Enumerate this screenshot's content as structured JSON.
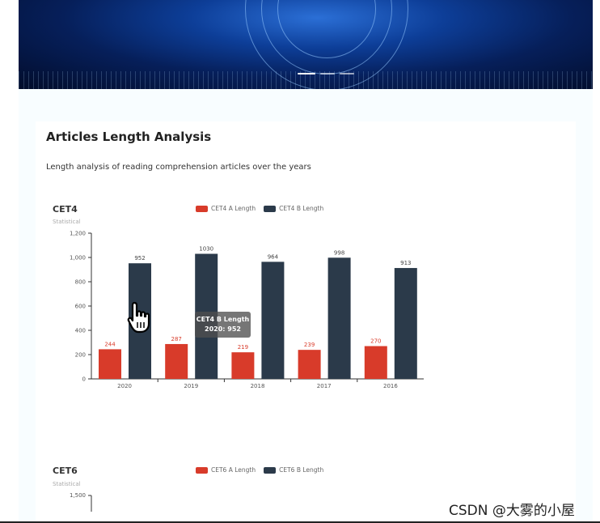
{
  "section": {
    "title": "Articles Length Analysis",
    "description": "Length analysis of reading comprehension articles over the years"
  },
  "colors": {
    "series_a": "#d83b2a",
    "series_b": "#2b3a4a"
  },
  "chart_data": [
    {
      "type": "bar",
      "title": "CET4",
      "subtitle": "Statistical",
      "categories": [
        "2020",
        "2019",
        "2018",
        "2017",
        "2016"
      ],
      "series": [
        {
          "name": "CET4 A Length",
          "values": [
            244,
            287,
            219,
            239,
            270
          ]
        },
        {
          "name": "CET4 B Length",
          "values": [
            952,
            1030,
            964,
            998,
            913
          ]
        }
      ],
      "yticks": [
        "0",
        "200",
        "400",
        "600",
        "800",
        "1,000",
        "1,200"
      ],
      "ylim": [
        0,
        1200
      ],
      "legend": "top"
    },
    {
      "type": "bar",
      "title": "CET6",
      "subtitle": "Statistical",
      "series": [
        {
          "name": "CET6 A Length"
        },
        {
          "name": "CET6 B Length"
        }
      ],
      "yticks": [
        "1,500"
      ],
      "legend": "top"
    }
  ],
  "tooltip": {
    "title": "CET4 B Length",
    "value": "2020: 952"
  },
  "watermark": "CSDN @大雾的小屋"
}
